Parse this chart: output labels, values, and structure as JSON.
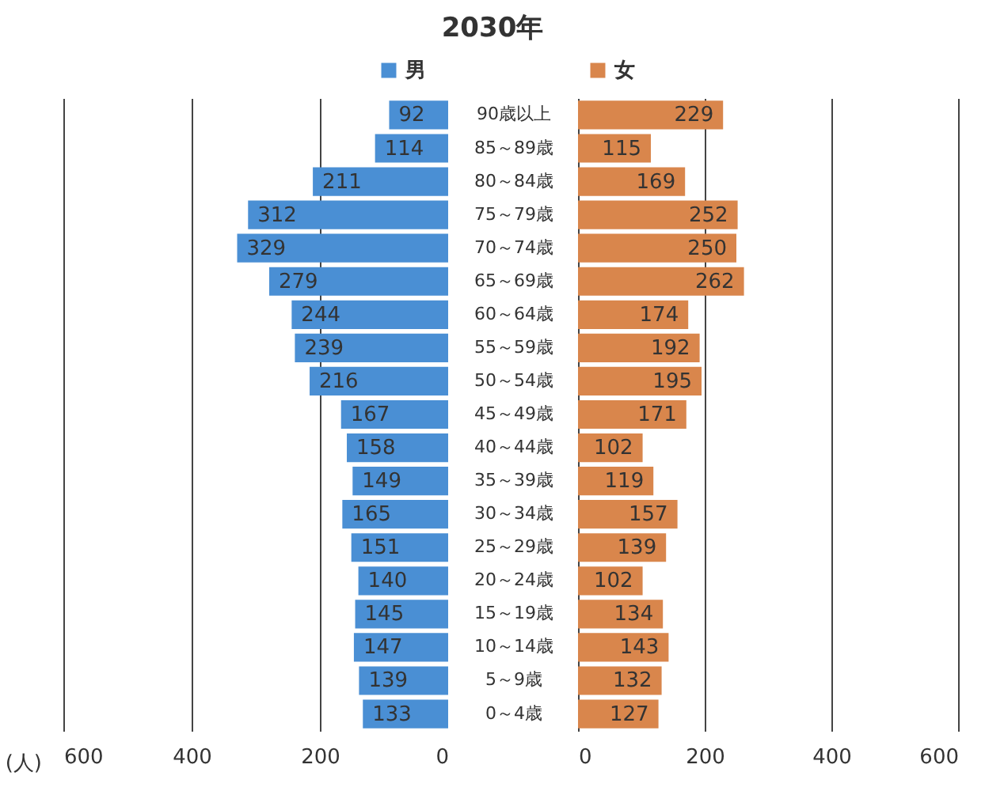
{
  "chart_data": [
    {
      "type": "bar",
      "title": "2030年",
      "orientation": "horizontal",
      "xlabel": "(人)",
      "tick_labels": "x",
      "grid": "x",
      "legend": "top",
      "data_labels": true,
      "series": [
        {
          "name": "男",
          "color": "#4a8fd4",
          "values": [
            92,
            114,
            211,
            312,
            329,
            279,
            244,
            239,
            216,
            167,
            158,
            149,
            165,
            151,
            140,
            145,
            147,
            139,
            133
          ]
        }
      ],
      "xlim": [
        600,
        0
      ],
      "xticks": [
        600,
        400,
        200,
        0
      ]
    },
    {
      "type": "bar",
      "orientation": "horizontal",
      "grid": "x",
      "legend": "top",
      "data_labels": true,
      "categories": [
        "90歳以上",
        "85～89歳",
        "80～84歳",
        "75～79歳",
        "70～74歳",
        "65～69歳",
        "60～64歳",
        "55～59歳",
        "50～54歳",
        "45～49歳",
        "40～44歳",
        "35～39歳",
        "30～34歳",
        "25～29歳",
        "20～24歳",
        "15～19歳",
        "10～14歳",
        "5～9歳",
        "0～4歳"
      ],
      "series": [
        {
          "name": "女",
          "color": "#d9864c",
          "values": [
            229,
            115,
            169,
            252,
            250,
            262,
            174,
            192,
            195,
            171,
            102,
            119,
            157,
            139,
            102,
            134,
            143,
            132,
            127
          ]
        }
      ],
      "xlim": [
        0,
        600
      ],
      "xticks": [
        0,
        200,
        400,
        600
      ]
    }
  ]
}
